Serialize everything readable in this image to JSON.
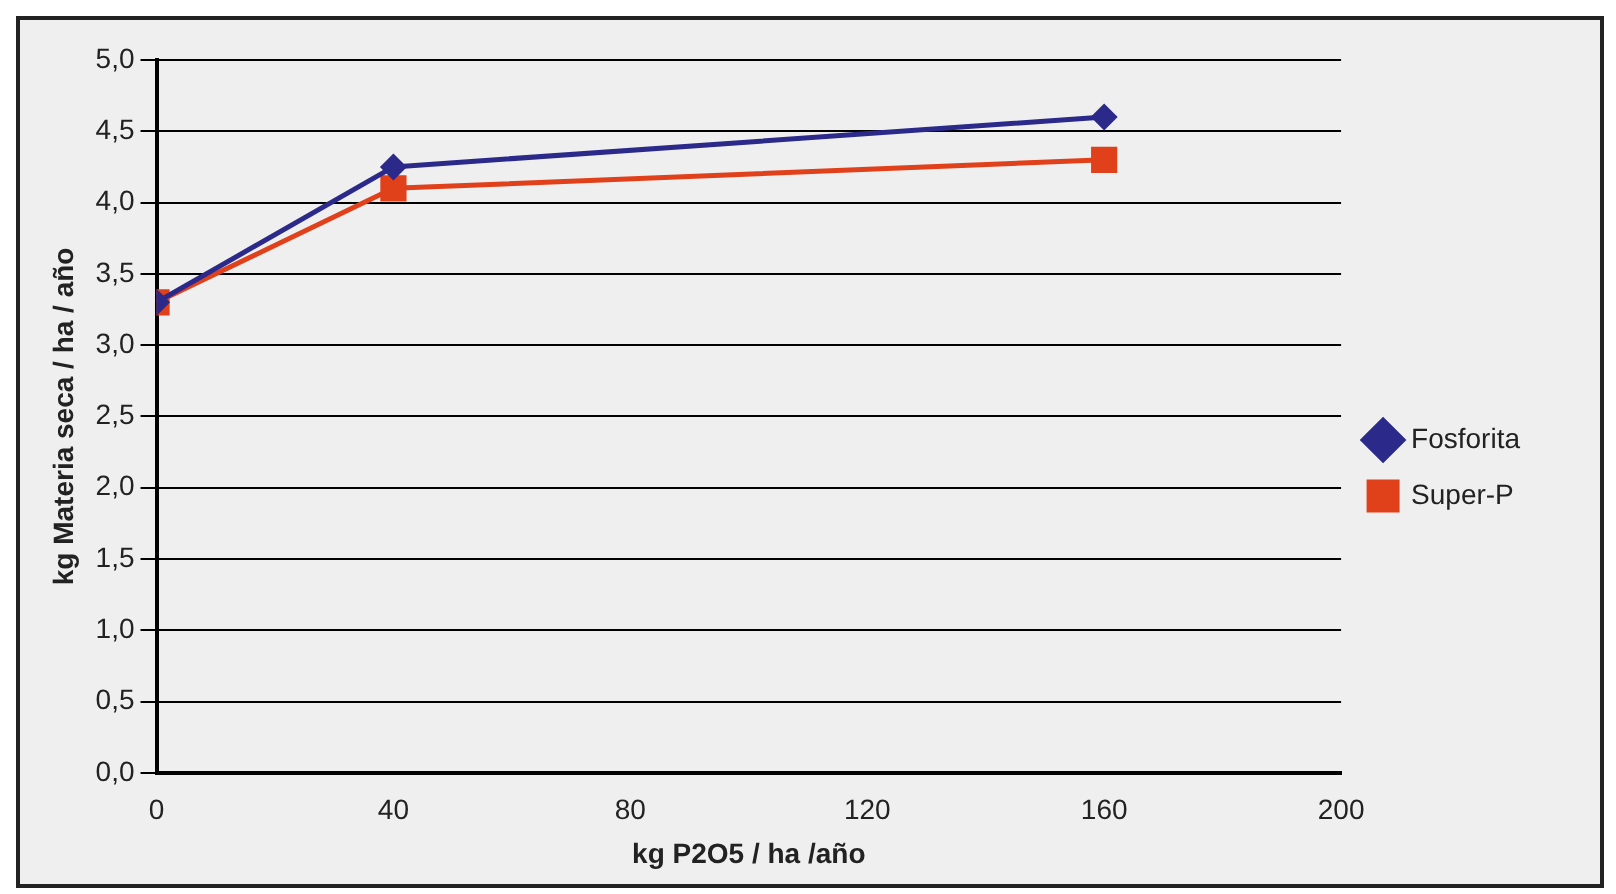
{
  "chart_data": {
    "type": "line",
    "xlabel": "kg P2O5 / ha /año",
    "ylabel": "kg Materia seca / ha / año",
    "x": [
      0,
      40,
      160
    ],
    "series": [
      {
        "name": "Fosforita",
        "color": "#2b2a8a",
        "values": [
          3.3,
          4.25,
          4.6
        ],
        "marker": "diamond"
      },
      {
        "name": "Super-P",
        "color": "#e0401a",
        "values": [
          3.3,
          4.1,
          4.3
        ],
        "marker": "square"
      }
    ],
    "xlim": [
      0,
      200
    ],
    "xticks": [
      0,
      40,
      80,
      120,
      160,
      200
    ],
    "ylim": [
      0,
      5
    ],
    "yticks": [
      {
        "value": 0,
        "label": "0,0"
      },
      {
        "value": 0.5,
        "label": "0,5"
      },
      {
        "value": 1,
        "label": "1,0"
      },
      {
        "value": 1.5,
        "label": "1,5"
      },
      {
        "value": 2,
        "label": "2,0"
      },
      {
        "value": 2.5,
        "label": "2,5"
      },
      {
        "value": 3,
        "label": "3,0"
      },
      {
        "value": 3.5,
        "label": "3,5"
      },
      {
        "value": 4,
        "label": "4,0"
      },
      {
        "value": 4.5,
        "label": "4,5"
      },
      {
        "value": 5,
        "label": "5,0"
      }
    ],
    "grid": "y",
    "legend": "right",
    "line_style": "solid"
  }
}
